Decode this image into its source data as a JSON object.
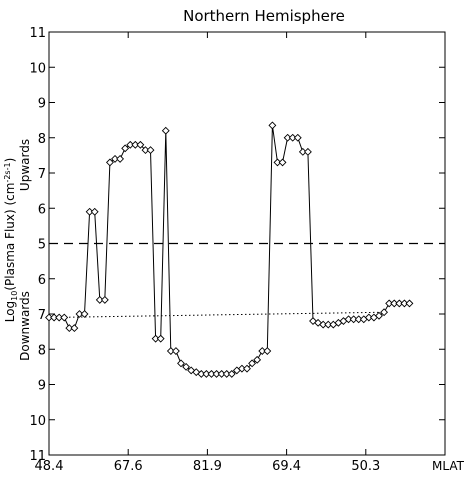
{
  "chart_data": {
    "type": "line",
    "title": "Northern Hemisphere",
    "ylabel_top": "Upwards",
    "ylabel_bottom": "Downwards",
    "ylabel_main": "Log10(Plasma Flux) (cm^-2 s^-1)",
    "xlabel": "MLAT",
    "x_tick_labels": [
      "48.4",
      "67.6",
      "81.9",
      "69.4",
      "50.3"
    ],
    "y_tick_labels": [
      "11",
      "10",
      "9",
      "8",
      "7",
      "6",
      "5",
      "6",
      "7",
      "8",
      "9",
      "10",
      "11"
    ],
    "y_axis_scale": "signed log: 5 at center, upward flux above, downward flux below",
    "series": [
      {
        "style": "solid line with diamond markers",
        "points": [
          {
            "x": 0,
            "y": -7.1
          },
          {
            "x": 1,
            "y": -7.1
          },
          {
            "x": 2,
            "y": -7.1
          },
          {
            "x": 3,
            "y": -7.1
          },
          {
            "x": 4,
            "y": -7.4
          },
          {
            "x": 5,
            "y": -7.4
          },
          {
            "x": 6,
            "y": -7.0
          },
          {
            "x": 7,
            "y": -7.0
          },
          {
            "x": 8,
            "y": 5.9
          },
          {
            "x": 9,
            "y": 5.9
          },
          {
            "x": 10,
            "y": -6.6
          },
          {
            "x": 11,
            "y": -6.6
          },
          {
            "x": 12,
            "y": 7.3
          },
          {
            "x": 13,
            "y": 7.4
          },
          {
            "x": 14,
            "y": 7.4
          },
          {
            "x": 15,
            "y": 7.7
          },
          {
            "x": 16,
            "y": 7.8
          },
          {
            "x": 17,
            "y": 7.8
          },
          {
            "x": 18,
            "y": 7.8
          },
          {
            "x": 19,
            "y": 7.65
          },
          {
            "x": 20,
            "y": 7.65
          },
          {
            "x": 21,
            "y": -7.7
          },
          {
            "x": 22,
            "y": -7.7
          },
          {
            "x": 23,
            "y": 8.2
          },
          {
            "x": 24,
            "y": -8.05
          },
          {
            "x": 25,
            "y": -8.05
          },
          {
            "x": 26,
            "y": -8.4
          },
          {
            "x": 27,
            "y": -8.5
          },
          {
            "x": 28,
            "y": -8.6
          },
          {
            "x": 29,
            "y": -8.65
          },
          {
            "x": 30,
            "y": -8.7
          },
          {
            "x": 31,
            "y": -8.7
          },
          {
            "x": 32,
            "y": -8.7
          },
          {
            "x": 33,
            "y": -8.7
          },
          {
            "x": 34,
            "y": -8.7
          },
          {
            "x": 35,
            "y": -8.7
          },
          {
            "x": 36,
            "y": -8.7
          },
          {
            "x": 37,
            "y": -8.6
          },
          {
            "x": 38,
            "y": -8.55
          },
          {
            "x": 39,
            "y": -8.55
          },
          {
            "x": 40,
            "y": -8.4
          },
          {
            "x": 41,
            "y": -8.3
          },
          {
            "x": 42,
            "y": -8.05
          },
          {
            "x": 43,
            "y": -8.05
          },
          {
            "x": 44,
            "y": 8.35
          },
          {
            "x": 45,
            "y": 7.3
          },
          {
            "x": 46,
            "y": 7.3
          },
          {
            "x": 47,
            "y": 8.0
          },
          {
            "x": 48,
            "y": 8.0
          },
          {
            "x": 49,
            "y": 8.0
          },
          {
            "x": 50,
            "y": 7.6
          },
          {
            "x": 51,
            "y": 7.6
          },
          {
            "x": 52,
            "y": -7.2
          },
          {
            "x": 53,
            "y": -7.25
          },
          {
            "x": 54,
            "y": -7.3
          },
          {
            "x": 55,
            "y": -7.3
          },
          {
            "x": 56,
            "y": -7.3
          },
          {
            "x": 57,
            "y": -7.25
          },
          {
            "x": 58,
            "y": -7.2
          },
          {
            "x": 59,
            "y": -7.15
          },
          {
            "x": 60,
            "y": -7.15
          },
          {
            "x": 61,
            "y": -7.15
          },
          {
            "x": 62,
            "y": -7.15
          },
          {
            "x": 63,
            "y": -7.1
          },
          {
            "x": 64,
            "y": -7.1
          },
          {
            "x": 65,
            "y": -7.05
          },
          {
            "x": 66,
            "y": -6.95
          },
          {
            "x": 67,
            "y": -6.7
          },
          {
            "x": 68,
            "y": -6.7
          },
          {
            "x": 69,
            "y": -6.7
          },
          {
            "x": 70,
            "y": -6.7
          },
          {
            "x": 71,
            "y": -6.7
          }
        ]
      }
    ],
    "threshold_line": {
      "style": "dashed",
      "y": 5
    },
    "trend_line": {
      "style": "dotted",
      "x_start": 0,
      "y_start": -7.1,
      "x_end": 66,
      "y_end": -6.95
    },
    "grid": false,
    "legend": "none"
  }
}
